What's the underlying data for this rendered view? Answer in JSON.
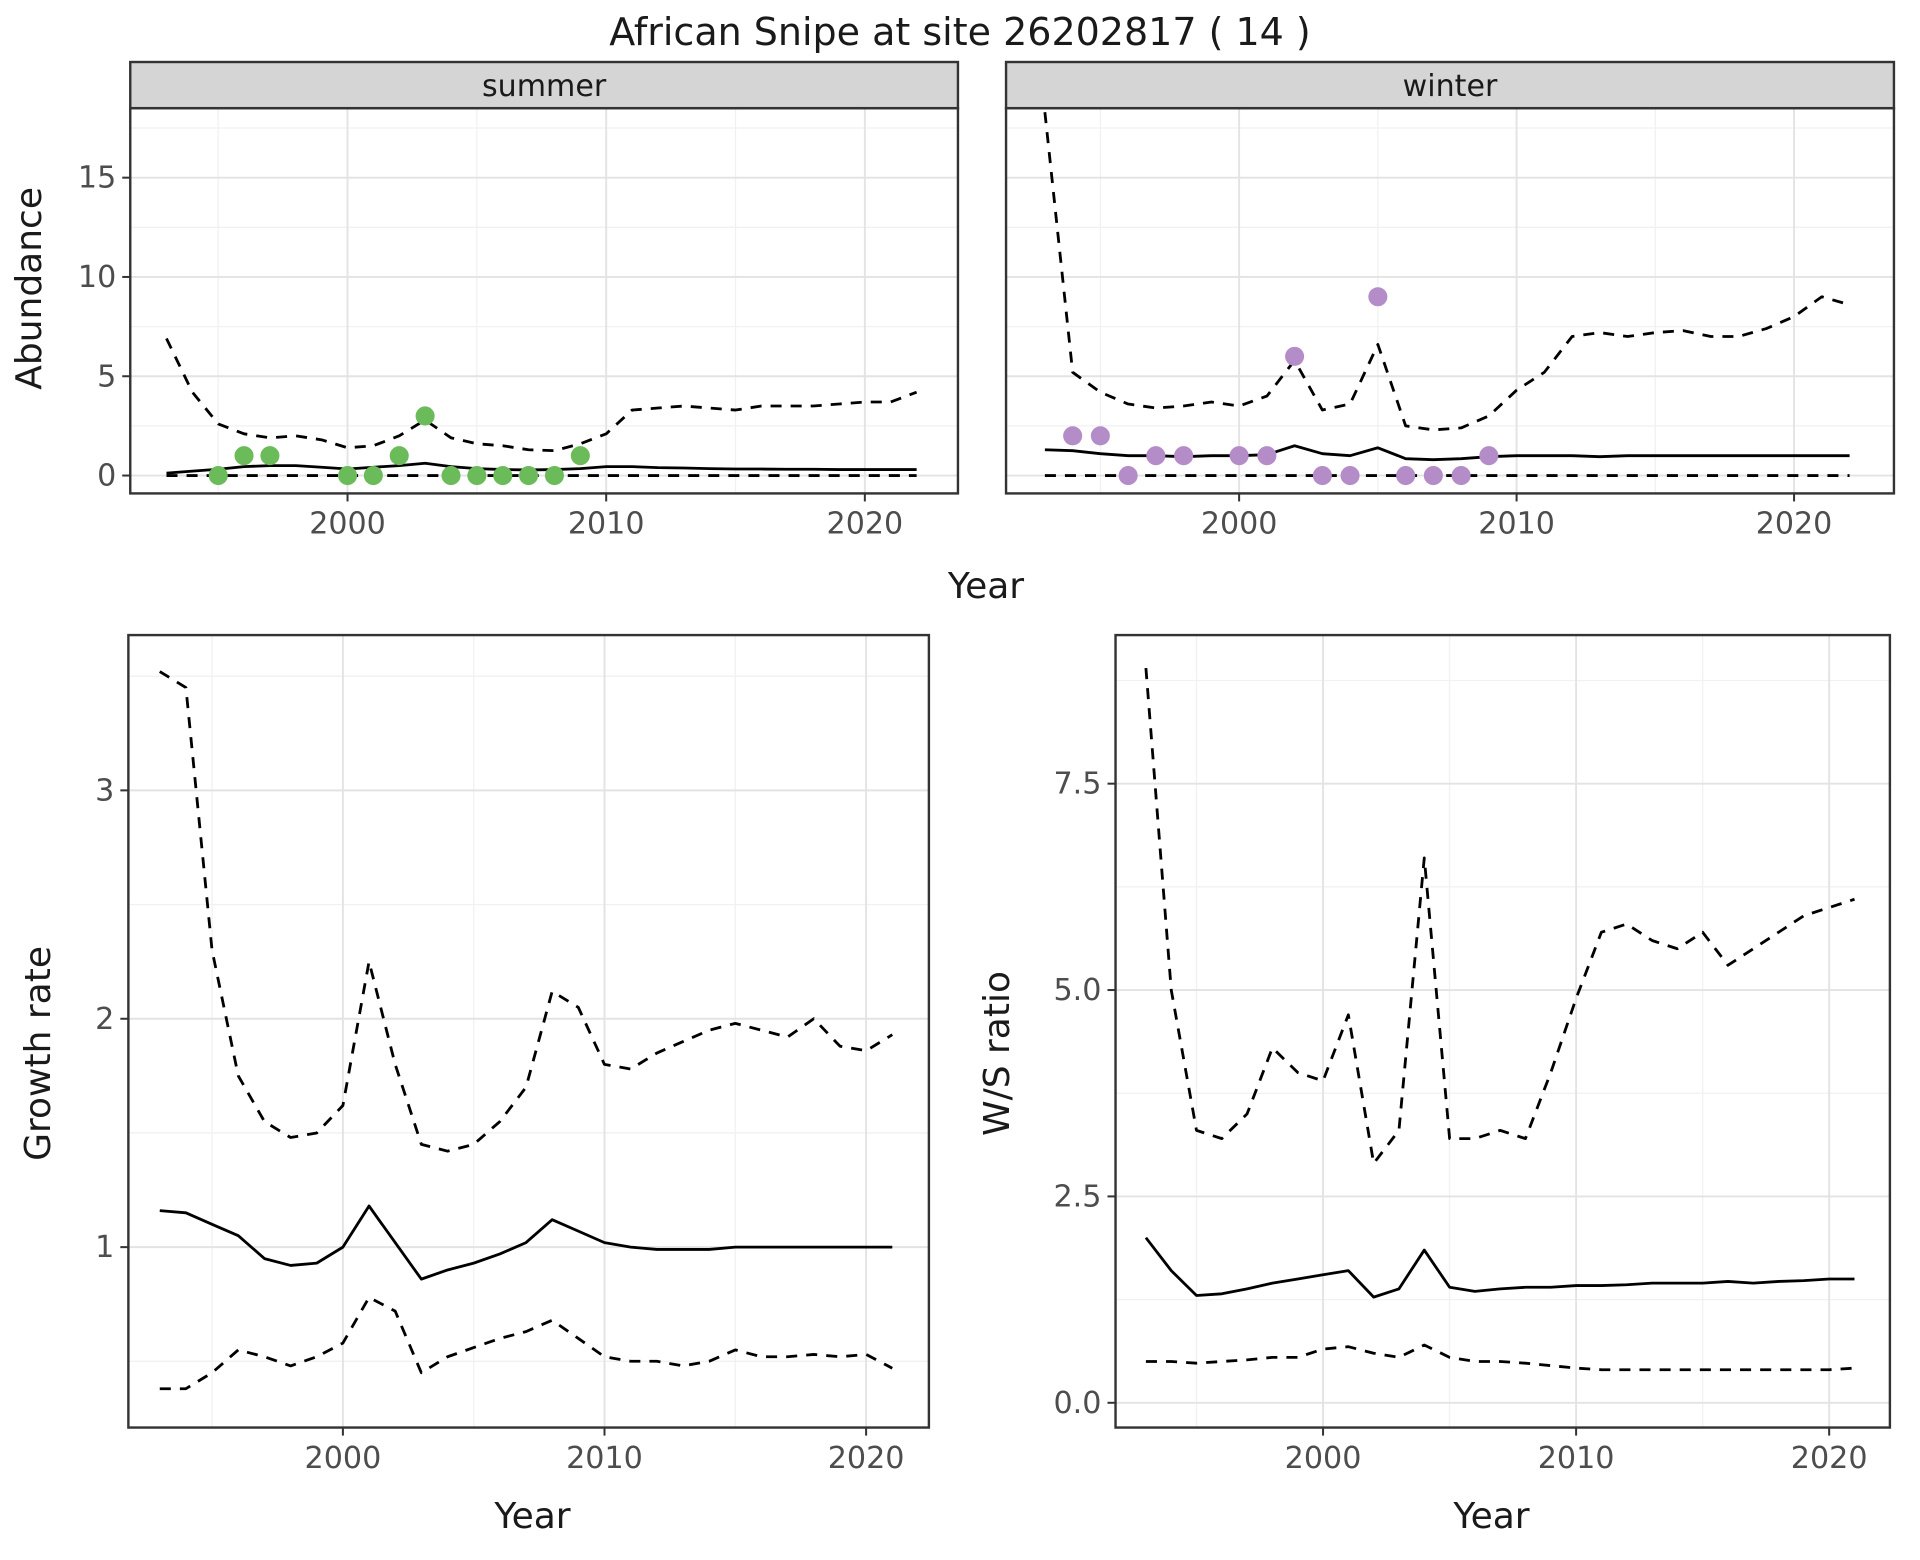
{
  "title": "African Snipe at site 26202817 ( 14 )",
  "colors": {
    "line": "#000000",
    "grid_major": "#e3e3e3",
    "grid_minor": "#f1f1f1",
    "panel_border": "#333333",
    "strip_bg": "#d5d5d5",
    "strip_text": "#1a1a1a",
    "tick_text": "#4d4d4d",
    "axis_text": "#1a1a1a",
    "summer_points": "#6cbb5a",
    "winter_points": "#b48cc8"
  },
  "labels": {
    "y_top": "Abundance",
    "x_top": "Year",
    "y_growth": "Growth rate",
    "x_growth": "Year",
    "y_ws": "W/S ratio",
    "x_ws": "Year"
  },
  "chart_data": [
    {
      "id": "summer",
      "type": "line",
      "facet_label": "summer",
      "xlabel": "Year",
      "ylabel": "Abundance",
      "xlim": [
        1991.6,
        2023.6
      ],
      "ylim": [
        -0.9,
        18.5
      ],
      "xticks": [
        2000,
        2010,
        2020
      ],
      "xtick_labels": [
        "2000",
        "2010",
        "2020"
      ],
      "yticks": [
        0,
        5,
        10,
        15
      ],
      "ytick_labels": [
        "0",
        "5",
        "10",
        "15"
      ],
      "series": [
        {
          "name": "fit",
          "style": "solid",
          "x": [
            1993,
            1994,
            1995,
            1996,
            1997,
            1998,
            1999,
            2000,
            2001,
            2002,
            2003,
            2004,
            2005,
            2006,
            2007,
            2008,
            2009,
            2010,
            2011,
            2012,
            2013,
            2014,
            2015,
            2016,
            2017,
            2018,
            2019,
            2020,
            2021,
            2022
          ],
          "y": [
            0.12,
            0.22,
            0.32,
            0.45,
            0.5,
            0.5,
            0.42,
            0.33,
            0.42,
            0.5,
            0.62,
            0.45,
            0.35,
            0.3,
            0.28,
            0.3,
            0.35,
            0.45,
            0.45,
            0.4,
            0.38,
            0.35,
            0.33,
            0.33,
            0.32,
            0.32,
            0.3,
            0.3,
            0.3,
            0.3
          ]
        },
        {
          "name": "upper_ci",
          "style": "dashed",
          "x": [
            1993,
            1994,
            1995,
            1996,
            1997,
            1998,
            1999,
            2000,
            2001,
            2002,
            2003,
            2004,
            2005,
            2006,
            2007,
            2008,
            2009,
            2010,
            2011,
            2012,
            2013,
            2014,
            2015,
            2016,
            2017,
            2018,
            2019,
            2020,
            2021,
            2022
          ],
          "y": [
            6.9,
            4.2,
            2.6,
            2.1,
            1.9,
            2.0,
            1.8,
            1.4,
            1.5,
            2.0,
            2.8,
            1.9,
            1.6,
            1.5,
            1.3,
            1.25,
            1.6,
            2.1,
            3.3,
            3.4,
            3.5,
            3.4,
            3.3,
            3.5,
            3.5,
            3.5,
            3.6,
            3.7,
            3.7,
            4.2
          ]
        },
        {
          "name": "lower_ci",
          "style": "dashed",
          "x": [
            1993,
            1994,
            1995,
            1996,
            1997,
            1998,
            1999,
            2000,
            2001,
            2002,
            2003,
            2004,
            2005,
            2006,
            2007,
            2008,
            2009,
            2010,
            2011,
            2012,
            2013,
            2014,
            2015,
            2016,
            2017,
            2018,
            2019,
            2020,
            2021,
            2022
          ],
          "y": [
            0,
            0,
            0,
            0,
            0,
            0,
            0,
            0,
            0,
            0,
            0,
            0,
            0,
            0,
            0,
            0,
            0,
            0,
            0,
            0,
            0,
            0,
            0,
            0,
            0,
            0,
            0,
            0,
            0,
            0
          ]
        }
      ],
      "points": {
        "color": "#6cbb5a",
        "x": [
          1995,
          1996,
          1997,
          2000,
          2001,
          2002,
          2003,
          2004,
          2005,
          2006,
          2007,
          2008,
          2009
        ],
        "y": [
          0,
          1,
          1,
          0,
          0,
          1,
          3,
          0,
          0,
          0,
          0,
          0,
          1
        ]
      }
    },
    {
      "id": "winter",
      "type": "line",
      "facet_label": "winter",
      "xlabel": "Year",
      "ylabel": "Abundance",
      "xlim": [
        1991.6,
        2023.6
      ],
      "ylim": [
        -0.9,
        18.5
      ],
      "xticks": [
        2000,
        2010,
        2020
      ],
      "xtick_labels": [
        "2000",
        "2010",
        "2020"
      ],
      "yticks": [
        0,
        5,
        10,
        15
      ],
      "ytick_labels": [
        "0",
        "5",
        "10",
        "15"
      ],
      "hide_y_tick_labels": true,
      "series": [
        {
          "name": "fit",
          "style": "solid",
          "x": [
            1993,
            1994,
            1995,
            1996,
            1997,
            1998,
            1999,
            2000,
            2001,
            2002,
            2003,
            2004,
            2005,
            2006,
            2007,
            2008,
            2009,
            2010,
            2011,
            2012,
            2013,
            2014,
            2015,
            2016,
            2017,
            2018,
            2019,
            2020,
            2021,
            2022
          ],
          "y": [
            1.3,
            1.25,
            1.1,
            1.0,
            1.0,
            0.95,
            1.0,
            1.0,
            1.05,
            1.5,
            1.1,
            1.0,
            1.4,
            0.85,
            0.8,
            0.85,
            0.95,
            1.0,
            1.0,
            1.0,
            0.95,
            1.0,
            1.0,
            1.0,
            1.0,
            1.0,
            1.0,
            1.0,
            1.0,
            1.0
          ]
        },
        {
          "name": "upper_ci",
          "style": "dashed",
          "x": [
            1993,
            1994,
            1995,
            1996,
            1997,
            1998,
            1999,
            2000,
            2001,
            2002,
            2003,
            2004,
            2005,
            2006,
            2007,
            2008,
            2009,
            2010,
            2011,
            2012,
            2013,
            2014,
            2015,
            2016,
            2017,
            2018,
            2019,
            2020,
            2021,
            2022
          ],
          "y": [
            18.3,
            5.2,
            4.2,
            3.6,
            3.4,
            3.5,
            3.7,
            3.5,
            4.0,
            5.8,
            3.3,
            3.6,
            6.6,
            2.5,
            2.3,
            2.4,
            3.0,
            4.3,
            5.2,
            7.0,
            7.2,
            7.0,
            7.2,
            7.3,
            7.0,
            7.0,
            7.4,
            8.0,
            9.0,
            8.6
          ]
        },
        {
          "name": "lower_ci",
          "style": "dashed",
          "x": [
            1993,
            1994,
            1995,
            1996,
            1997,
            1998,
            1999,
            2000,
            2001,
            2002,
            2003,
            2004,
            2005,
            2006,
            2007,
            2008,
            2009,
            2010,
            2011,
            2012,
            2013,
            2014,
            2015,
            2016,
            2017,
            2018,
            2019,
            2020,
            2021,
            2022
          ],
          "y": [
            0,
            0,
            0,
            0,
            0,
            0,
            0,
            0,
            0,
            0,
            0,
            0,
            0,
            0,
            0,
            0,
            0,
            0,
            0,
            0,
            0,
            0,
            0,
            0,
            0,
            0,
            0,
            0,
            0,
            0
          ]
        }
      ],
      "points": {
        "color": "#b48cc8",
        "x": [
          1994,
          1995,
          1996,
          1997,
          1998,
          2000,
          2001,
          2002,
          2003,
          2004,
          2005,
          2006,
          2007,
          2008,
          2009
        ],
        "y": [
          2,
          2,
          0,
          1,
          1,
          1,
          1,
          6,
          0,
          0,
          9,
          0,
          0,
          0,
          1
        ]
      }
    },
    {
      "id": "growth",
      "type": "line",
      "facet_label": null,
      "xlabel": "Year",
      "ylabel": "Growth rate",
      "xlim": [
        1991.8,
        2022.4
      ],
      "ylim": [
        0.21,
        3.68
      ],
      "xticks": [
        2000,
        2010,
        2020
      ],
      "xtick_labels": [
        "2000",
        "2010",
        "2020"
      ],
      "yticks": [
        1,
        2,
        3
      ],
      "ytick_labels": [
        "1",
        "2",
        "3"
      ],
      "series": [
        {
          "name": "fit",
          "style": "solid",
          "x": [
            1993,
            1994,
            1995,
            1996,
            1997,
            1998,
            1999,
            2000,
            2001,
            2002,
            2003,
            2004,
            2005,
            2006,
            2007,
            2008,
            2009,
            2010,
            2011,
            2012,
            2013,
            2014,
            2015,
            2016,
            2017,
            2018,
            2019,
            2020,
            2021
          ],
          "y": [
            1.16,
            1.15,
            1.1,
            1.05,
            0.95,
            0.92,
            0.93,
            1.0,
            1.18,
            1.02,
            0.86,
            0.9,
            0.93,
            0.97,
            1.02,
            1.12,
            1.07,
            1.02,
            1.0,
            0.99,
            0.99,
            0.99,
            1.0,
            1.0,
            1.0,
            1.0,
            1.0,
            1.0,
            1.0
          ]
        },
        {
          "name": "upper_ci",
          "style": "dashed",
          "x": [
            1993,
            1994,
            1995,
            1996,
            1997,
            1998,
            1999,
            2000,
            2001,
            2002,
            2003,
            2004,
            2005,
            2006,
            2007,
            2008,
            2009,
            2010,
            2011,
            2012,
            2013,
            2014,
            2015,
            2016,
            2017,
            2018,
            2019,
            2020,
            2021
          ],
          "y": [
            3.52,
            3.45,
            2.3,
            1.75,
            1.55,
            1.48,
            1.5,
            1.62,
            2.25,
            1.8,
            1.45,
            1.42,
            1.45,
            1.55,
            1.7,
            2.12,
            2.05,
            1.8,
            1.78,
            1.85,
            1.9,
            1.95,
            1.98,
            1.95,
            1.92,
            2.0,
            1.88,
            1.86,
            1.93
          ]
        },
        {
          "name": "lower_ci",
          "style": "dashed",
          "x": [
            1993,
            1994,
            1995,
            1996,
            1997,
            1998,
            1999,
            2000,
            2001,
            2002,
            2003,
            2004,
            2005,
            2006,
            2007,
            2008,
            2009,
            2010,
            2011,
            2012,
            2013,
            2014,
            2015,
            2016,
            2017,
            2018,
            2019,
            2020,
            2021
          ],
          "y": [
            0.38,
            0.38,
            0.45,
            0.55,
            0.52,
            0.48,
            0.52,
            0.58,
            0.78,
            0.72,
            0.45,
            0.52,
            0.56,
            0.6,
            0.63,
            0.68,
            0.6,
            0.52,
            0.5,
            0.5,
            0.48,
            0.5,
            0.55,
            0.52,
            0.52,
            0.53,
            0.52,
            0.53,
            0.47
          ]
        }
      ],
      "points": null
    },
    {
      "id": "ws",
      "type": "line",
      "facet_label": null,
      "xlabel": "Year",
      "ylabel": "W/S ratio",
      "xlim": [
        1991.8,
        2022.4
      ],
      "ylim": [
        -0.3,
        9.3
      ],
      "xticks": [
        2000,
        2010,
        2020
      ],
      "xtick_labels": [
        "2000",
        "2010",
        "2020"
      ],
      "yticks": [
        0,
        2.5,
        5,
        7.5
      ],
      "ytick_labels": [
        "0.0",
        "2.5",
        "5.0",
        "7.5"
      ],
      "series": [
        {
          "name": "fit",
          "style": "solid",
          "x": [
            1993,
            1994,
            1995,
            1996,
            1997,
            1998,
            1999,
            2000,
            2001,
            2002,
            2003,
            2004,
            2005,
            2006,
            2007,
            2008,
            2009,
            2010,
            2011,
            2012,
            2013,
            2014,
            2015,
            2016,
            2017,
            2018,
            2019,
            2020,
            2021
          ],
          "y": [
            2.0,
            1.6,
            1.3,
            1.32,
            1.38,
            1.45,
            1.5,
            1.55,
            1.6,
            1.28,
            1.38,
            1.85,
            1.4,
            1.35,
            1.38,
            1.4,
            1.4,
            1.42,
            1.42,
            1.43,
            1.45,
            1.45,
            1.45,
            1.47,
            1.45,
            1.47,
            1.48,
            1.5,
            1.5
          ]
        },
        {
          "name": "upper_ci",
          "style": "dashed",
          "x": [
            1993,
            1994,
            1995,
            1996,
            1997,
            1998,
            1999,
            2000,
            2001,
            2002,
            2003,
            2004,
            2005,
            2006,
            2007,
            2008,
            2009,
            2010,
            2011,
            2012,
            2013,
            2014,
            2015,
            2016,
            2017,
            2018,
            2019,
            2020,
            2021
          ],
          "y": [
            8.9,
            5.0,
            3.3,
            3.2,
            3.5,
            4.3,
            4.0,
            3.9,
            4.7,
            2.9,
            3.3,
            6.6,
            3.2,
            3.2,
            3.3,
            3.2,
            4.0,
            4.9,
            5.7,
            5.8,
            5.6,
            5.5,
            5.7,
            5.3,
            5.5,
            5.7,
            5.9,
            6.0,
            6.1
          ]
        },
        {
          "name": "lower_ci",
          "style": "dashed",
          "x": [
            1993,
            1994,
            1995,
            1996,
            1997,
            1998,
            1999,
            2000,
            2001,
            2002,
            2003,
            2004,
            2005,
            2006,
            2007,
            2008,
            2009,
            2010,
            2011,
            2012,
            2013,
            2014,
            2015,
            2016,
            2017,
            2018,
            2019,
            2020,
            2021
          ],
          "y": [
            0.5,
            0.5,
            0.48,
            0.5,
            0.52,
            0.55,
            0.55,
            0.65,
            0.68,
            0.6,
            0.55,
            0.7,
            0.55,
            0.5,
            0.5,
            0.48,
            0.45,
            0.42,
            0.4,
            0.4,
            0.4,
            0.4,
            0.4,
            0.4,
            0.4,
            0.4,
            0.4,
            0.4,
            0.42
          ]
        }
      ],
      "points": null
    }
  ]
}
